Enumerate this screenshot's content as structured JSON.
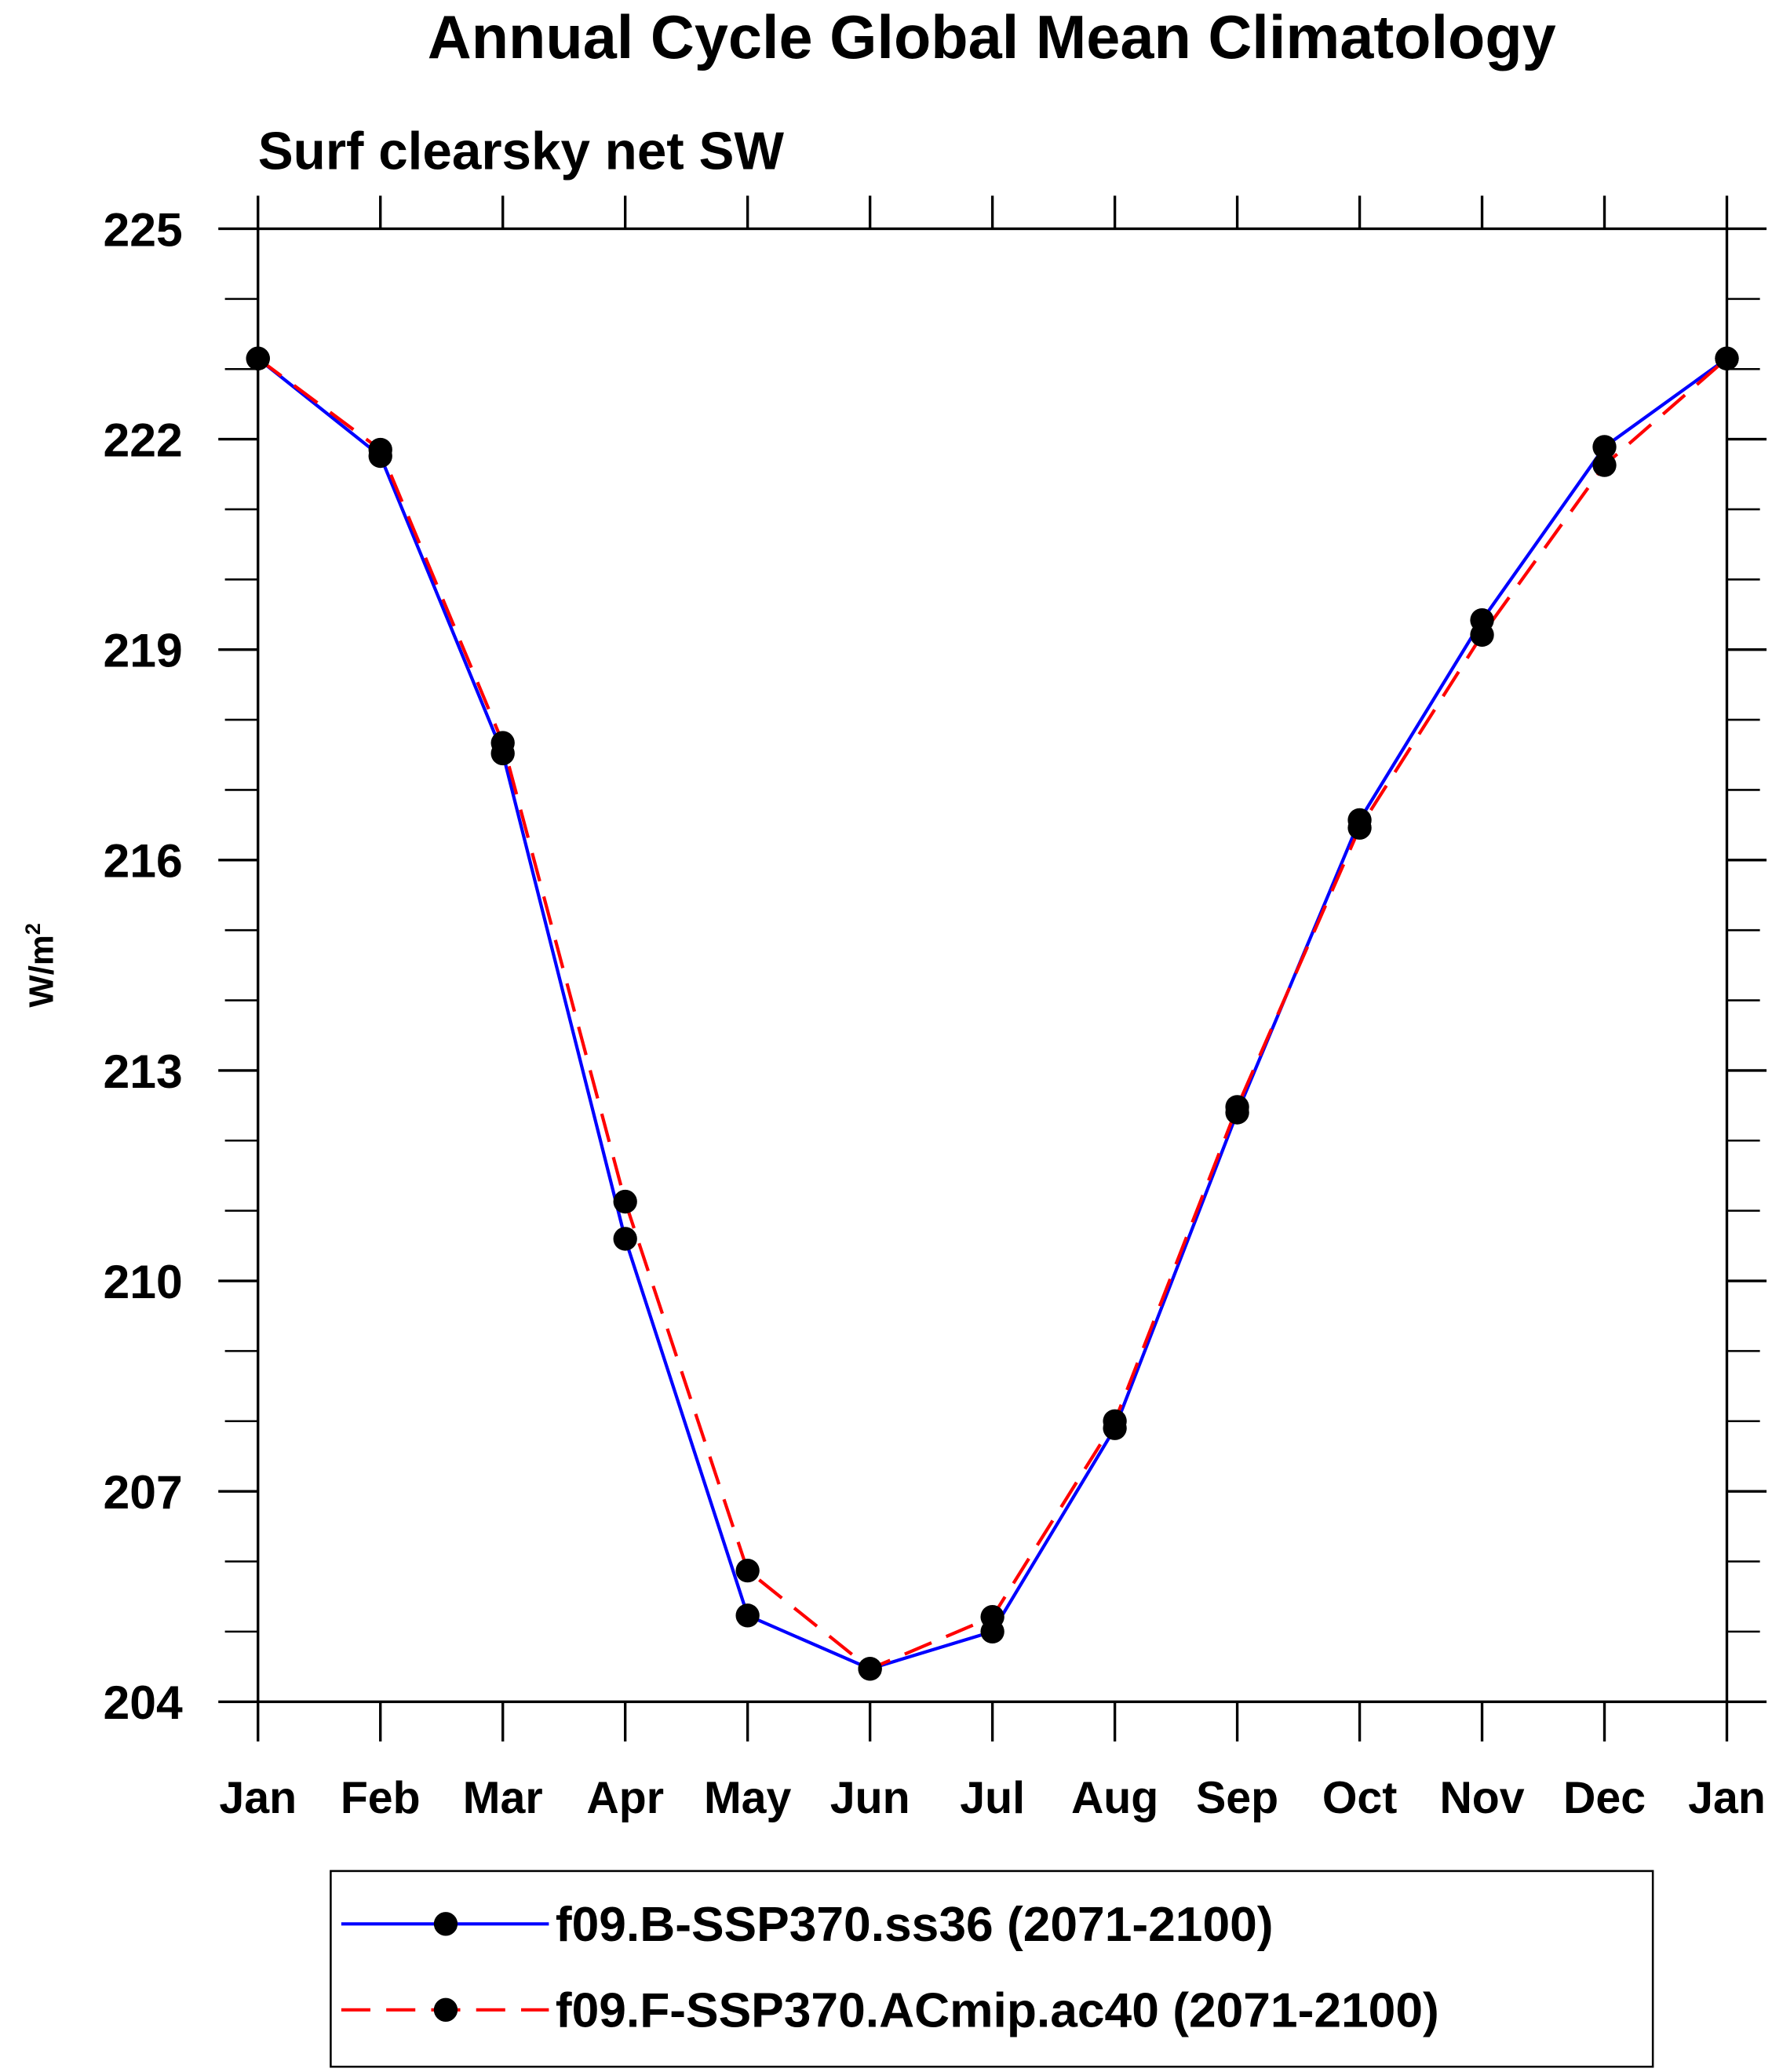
{
  "chart_data": {
    "type": "line",
    "title": "Annual Cycle Global Mean Climatology",
    "subtitle": "Surf clearsky net SW",
    "ylabel": "W/m",
    "ylabel_superscript": "2",
    "xlabel": "",
    "categories": [
      "Jan",
      "Feb",
      "Mar",
      "Apr",
      "May",
      "Jun",
      "Jul",
      "Aug",
      "Sep",
      "Oct",
      "Nov",
      "Dec",
      "Jan"
    ],
    "ylim": [
      204,
      225
    ],
    "yticks": [
      204,
      207,
      210,
      213,
      216,
      219,
      222,
      225
    ],
    "ytick_labels": [
      "204",
      "207",
      "210",
      "213",
      "216",
      "219",
      "222",
      "225"
    ],
    "minor_ytick_step": 1,
    "grid": false,
    "legend_position": "bottom",
    "series": [
      {
        "name": "f09.B-SSP370.ss36 (2071-2100)",
        "color": "#0000ff",
        "dash": "solid",
        "marker": "filled-circle",
        "values": [
          223.15,
          221.76,
          217.52,
          210.6,
          205.23,
          204.47,
          205.0,
          207.9,
          212.4,
          216.57,
          219.42,
          221.89,
          223.15
        ]
      },
      {
        "name": "f09.F-SSP370.ACmip.ac40 (2071-2100)",
        "color": "#ff0000",
        "dash": "dashed",
        "marker": "filled-circle",
        "values": [
          223.15,
          221.85,
          217.67,
          211.13,
          205.87,
          204.47,
          205.21,
          208.0,
          212.48,
          216.46,
          219.21,
          221.63,
          223.15
        ]
      }
    ]
  }
}
